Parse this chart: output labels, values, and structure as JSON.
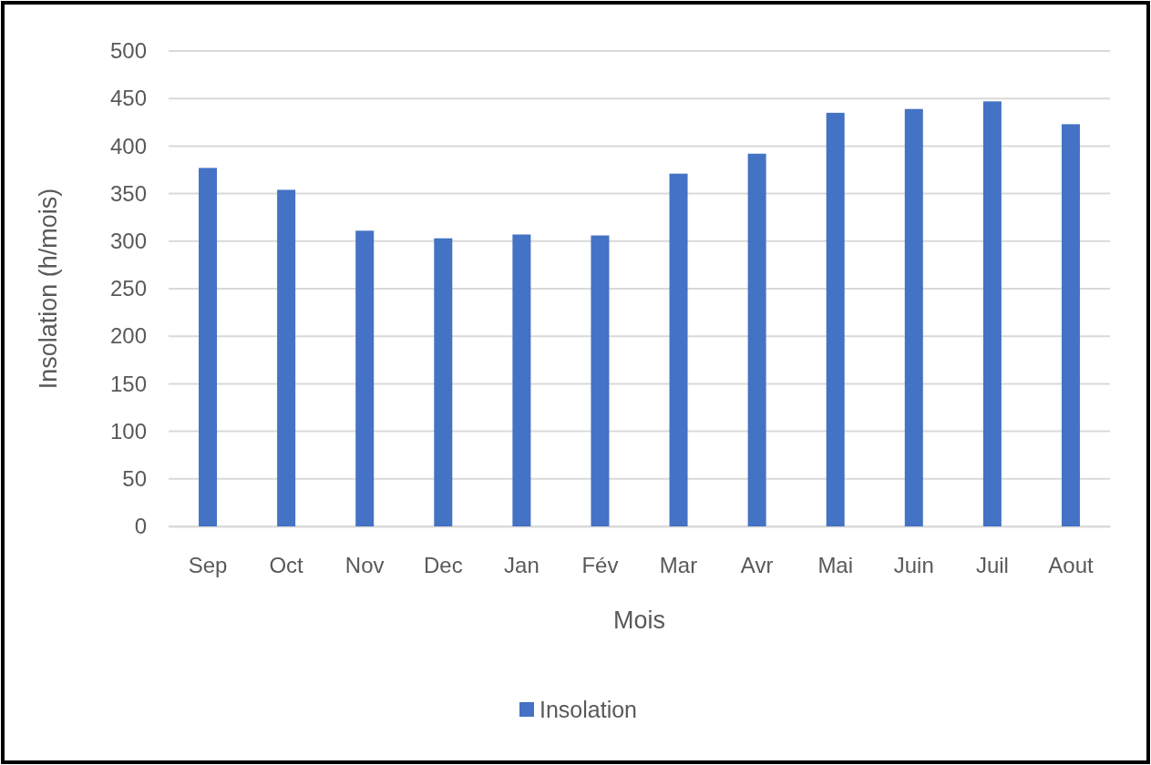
{
  "chart_data": {
    "type": "bar",
    "xlabel": "Mois",
    "ylabel": "Insolation (h/mois)",
    "categories": [
      "Sep",
      "Oct",
      "Nov",
      "Dec",
      "Jan",
      "Fév",
      "Mar",
      "Avr",
      "Mai",
      "Juin",
      "Juil",
      "Aout"
    ],
    "series": [
      {
        "name": "Insolation",
        "color": "#4472c4",
        "values": [
          377,
          354,
          311,
          303,
          307,
          306,
          371,
          392,
          435,
          439,
          447,
          423
        ]
      }
    ],
    "ylim": [
      0,
      500
    ],
    "yticks": [
      0,
      50,
      100,
      150,
      200,
      250,
      300,
      350,
      400,
      450,
      500
    ],
    "grid": "y",
    "legend": "bottom"
  }
}
